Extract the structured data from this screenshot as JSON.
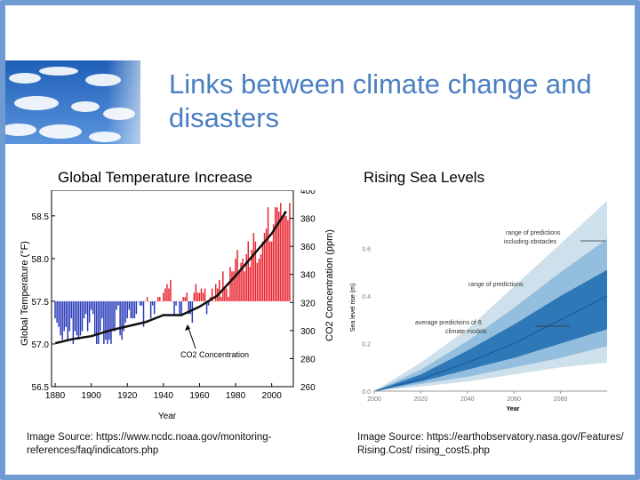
{
  "title": "Links between climate change and disasters",
  "left_panel": {
    "heading": "Global Temperature Increase",
    "source": "Image Source: https://www.ncdc.noaa.gov/monitoring-references/faq/indicators.php"
  },
  "right_panel": {
    "heading": "Rising Sea Levels",
    "source": "Image Source: https://earthobservatory.nasa.gov/Features/ Rising.Cost/ rising_cost5.php"
  },
  "colors": {
    "title": "#4a7fc2",
    "border": "#6f9bd3",
    "warm_bar": "#e8202a",
    "cool_bar": "#2638b8",
    "sea_band_outer": "#cde0ec",
    "sea_band_mid": "#93bedd",
    "sea_band_inner": "#2f78b8",
    "sea_line": "#1a5a9a"
  },
  "chart_data": [
    {
      "type": "bar",
      "xlabel": "Year",
      "ylabel": "Global Temperature (°F)",
      "y2label": "CO2 Concentration (ppm)",
      "ylim": [
        56.5,
        58.8
      ],
      "y2lim": [
        260,
        400
      ],
      "xlim": [
        1878,
        2012
      ],
      "baseline": 57.5,
      "x_ticks": [
        1880,
        1900,
        1920,
        1940,
        1960,
        1980,
        2000
      ],
      "y_ticks": [
        56.5,
        57.0,
        57.5,
        58.0,
        58.5
      ],
      "y2_ticks": [
        260,
        280,
        300,
        320,
        340,
        360,
        380,
        400
      ],
      "annotation": "CO2 Concentration",
      "temp_series": {
        "start_year": 1880,
        "values": [
          57.3,
          57.25,
          57.2,
          57.1,
          57.05,
          57.15,
          57.2,
          57.05,
          57.15,
          57.3,
          57.0,
          57.15,
          57.1,
          57.05,
          57.1,
          57.15,
          57.3,
          57.35,
          57.15,
          57.25,
          57.4,
          57.35,
          57.1,
          57.0,
          57.0,
          57.15,
          57.3,
          57.0,
          57.05,
          57.0,
          57.05,
          57.0,
          57.15,
          57.15,
          57.4,
          57.45,
          57.1,
          57.05,
          57.15,
          57.25,
          57.3,
          57.4,
          57.3,
          57.3,
          57.3,
          57.35,
          57.5,
          57.45,
          57.45,
          57.2,
          57.5,
          57.55,
          57.5,
          57.3,
          57.45,
          57.35,
          57.5,
          57.55,
          57.55,
          57.5,
          57.6,
          57.65,
          57.7,
          57.65,
          57.75,
          57.5,
          57.35,
          57.45,
          57.5,
          57.35,
          57.35,
          57.55,
          57.55,
          57.6,
          57.35,
          57.35,
          57.25,
          57.6,
          57.7,
          57.6,
          57.6,
          57.65,
          57.6,
          57.65,
          57.35,
          57.45,
          57.55,
          57.65,
          57.5,
          57.7,
          57.65,
          57.75,
          57.55,
          57.85,
          57.65,
          57.65,
          57.55,
          57.9,
          57.85,
          57.85,
          58.0,
          58.1,
          57.85,
          57.95,
          58.0,
          57.85,
          58.05,
          58.2,
          57.9,
          58.1,
          58.3,
          58.2,
          57.95,
          58.0,
          58.05,
          58.2,
          58.3,
          58.35,
          58.6,
          58.2,
          58.2,
          58.4,
          58.6,
          58.6,
          58.55,
          58.65,
          58.5,
          58.55,
          58.5,
          58.45,
          58.65
        ]
      },
      "co2_series": {
        "x": [
          1880,
          1890,
          1900,
          1910,
          1920,
          1930,
          1940,
          1950,
          1960,
          1970,
          1980,
          1990,
          2000,
          2008
        ],
        "values": [
          291,
          294,
          296,
          300,
          303,
          306,
          311,
          311,
          317,
          325,
          339,
          354,
          369,
          385
        ]
      }
    },
    {
      "type": "area",
      "xlabel": "Year",
      "ylabel": "Sea level rise (m)",
      "xlim": [
        2000,
        2100
      ],
      "ylim": [
        0,
        0.8
      ],
      "x_ticks": [
        2000,
        2020,
        2040,
        2060,
        2080
      ],
      "y_ticks": [
        0,
        0.2,
        0.4,
        0.6
      ],
      "y_tick_labels": [
        "0.0",
        "0.2",
        "0.4",
        "0.6"
      ],
      "annotations": [
        "range of predictions including obstacles",
        "range of predictions",
        "average predictions of 6 climate models"
      ],
      "x": [
        2000,
        2020,
        2040,
        2060,
        2080,
        2100
      ],
      "mean": [
        0.0,
        0.05,
        0.12,
        0.2,
        0.3,
        0.4
      ],
      "band_inner": {
        "low": [
          0.0,
          0.04,
          0.09,
          0.14,
          0.2,
          0.26
        ],
        "high": [
          0.0,
          0.07,
          0.17,
          0.28,
          0.4,
          0.51
        ]
      },
      "band_mid": {
        "low": [
          0.0,
          0.03,
          0.06,
          0.1,
          0.14,
          0.19
        ],
        "high": [
          0.0,
          0.09,
          0.21,
          0.35,
          0.5,
          0.64
        ]
      },
      "band_outer": {
        "low": [
          0.0,
          0.02,
          0.04,
          0.07,
          0.1,
          0.12
        ],
        "high": [
          0.0,
          0.12,
          0.26,
          0.44,
          0.62,
          0.8
        ]
      }
    }
  ]
}
